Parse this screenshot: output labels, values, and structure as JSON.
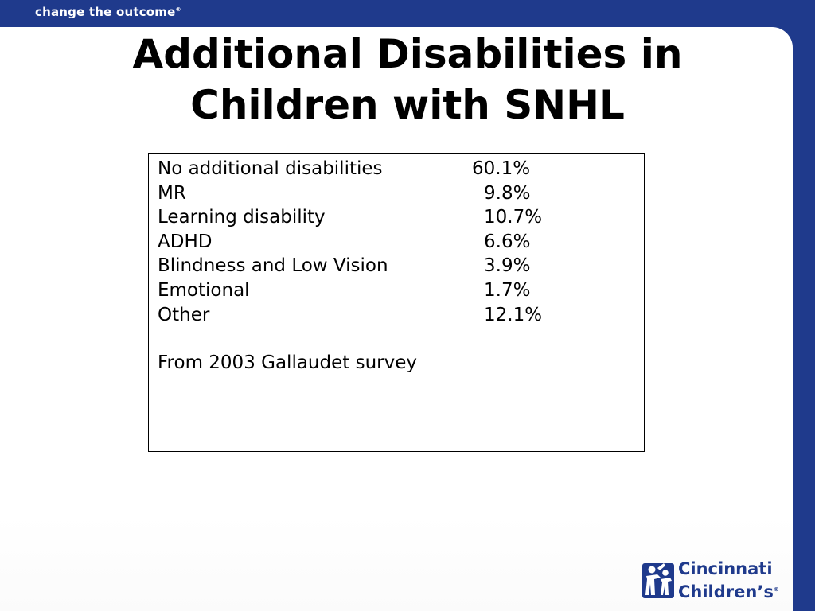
{
  "header": {
    "tagline": "change the outcome",
    "tagline_mark": "®"
  },
  "slide": {
    "title_line1": "Additional Disabilities in",
    "title_line2": "Children with SNHL",
    "rows": [
      {
        "label": "No additional disabilities",
        "value": "60.1%"
      },
      {
        "label": "MR",
        "value": "9.8%"
      },
      {
        "label": "Learning disability",
        "value": "10.7%"
      },
      {
        "label": "ADHD",
        "value": "6.6%"
      },
      {
        "label": "Blindness and Low Vision",
        "value": "3.9%"
      },
      {
        "label": "Emotional",
        "value": "1.7%"
      },
      {
        "label": "Other",
        "value": "12.1%"
      }
    ],
    "source": "From 2003 Gallaudet survey"
  },
  "logo": {
    "line1": "Cincinnati",
    "line2": "Children’s",
    "mark": "®",
    "color": "#1f3a8c"
  },
  "colors": {
    "brand_blue": "#1f3a8c",
    "slide_bg": "#ffffff",
    "text": "#000000"
  }
}
